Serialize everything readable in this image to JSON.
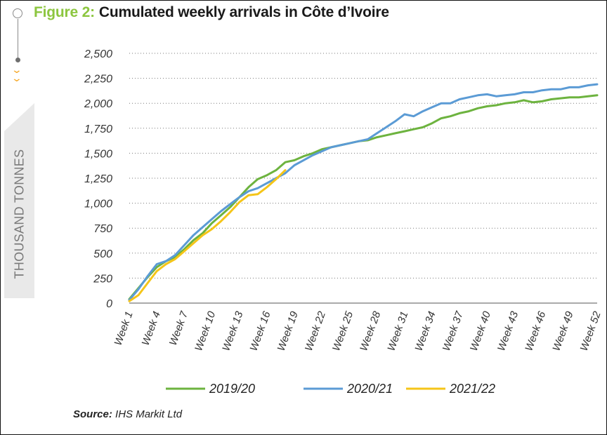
{
  "title": {
    "figure": "Figure 2:",
    "text": "Cumulated weekly arrivals in Côte d’Ivoire"
  },
  "side_label": "THOUSAND TONNES",
  "source": {
    "label": "Source:",
    "text": "IHS Markit Ltd"
  },
  "colors": {
    "accent_green": "#8cc63f",
    "bullet_orange": "#f5a623",
    "tab_bg": "#e9e9e9"
  },
  "icons": [
    "timeline-bullet-icon",
    "chevron-down-icon"
  ],
  "chart_data": {
    "type": "line",
    "title": "Cumulated weekly arrivals in Côte d’Ivoire",
    "xlabel": "",
    "ylabel": "THOUSAND TONNES",
    "ylim": [
      0,
      2500
    ],
    "yticks": [
      0,
      250,
      500,
      750,
      1000,
      1250,
      1500,
      1750,
      2000,
      2250,
      2500
    ],
    "ytick_labels": [
      "0",
      "250",
      "500",
      "750",
      "1,000",
      "1,250",
      "1,500",
      "1,750",
      "2,000",
      "2,250",
      "2,500"
    ],
    "x_tick_labels": [
      "Week 1",
      "Week 4",
      "Week 7",
      "Week 10",
      "Week 13",
      "Week 16",
      "Week 19",
      "Week 22",
      "Week 25",
      "Week 28",
      "Week 31",
      "Week 34",
      "Week 37",
      "Week 40",
      "Week 43",
      "Week 46",
      "Week 49",
      "Week 52"
    ],
    "grid": "horizontal",
    "legend": "bottom",
    "series": [
      {
        "name": "2019/20",
        "color": "#6db33f",
        "x": [
          1,
          2,
          3,
          4,
          5,
          6,
          7,
          8,
          9,
          10,
          11,
          12,
          13,
          14,
          15,
          16,
          17,
          18,
          19,
          20,
          21,
          22,
          23,
          24,
          25,
          26,
          27,
          28,
          29,
          30,
          31,
          32,
          33,
          34,
          35,
          36,
          37,
          38,
          39,
          40,
          41,
          42,
          43,
          44,
          45,
          46,
          47,
          48,
          49,
          50,
          51,
          52
        ],
        "values": [
          40,
          150,
          260,
          360,
          420,
          460,
          540,
          630,
          700,
          800,
          880,
          960,
          1060,
          1160,
          1240,
          1280,
          1330,
          1410,
          1430,
          1470,
          1500,
          1540,
          1560,
          1580,
          1600,
          1620,
          1630,
          1660,
          1680,
          1700,
          1720,
          1740,
          1760,
          1800,
          1850,
          1870,
          1900,
          1920,
          1950,
          1970,
          1980,
          2000,
          2010,
          2030,
          2010,
          2020,
          2040,
          2050,
          2060,
          2060,
          2070,
          2080
        ]
      },
      {
        "name": "2020/21",
        "color": "#5b9bd5",
        "x": [
          1,
          2,
          3,
          4,
          5,
          6,
          7,
          8,
          9,
          10,
          11,
          12,
          13,
          14,
          15,
          16,
          17,
          18,
          19,
          20,
          21,
          22,
          23,
          24,
          25,
          26,
          27,
          28,
          29,
          30,
          31,
          32,
          33,
          34,
          35,
          36,
          37,
          38,
          39,
          40,
          41,
          42,
          43,
          44,
          45,
          46,
          47,
          48,
          49,
          50,
          51,
          52
        ],
        "values": [
          30,
          140,
          270,
          390,
          420,
          480,
          580,
          680,
          760,
          840,
          920,
          990,
          1060,
          1120,
          1150,
          1200,
          1250,
          1300,
          1380,
          1430,
          1480,
          1520,
          1560,
          1580,
          1600,
          1620,
          1640,
          1700,
          1760,
          1820,
          1890,
          1870,
          1920,
          1960,
          2000,
          2000,
          2040,
          2060,
          2080,
          2090,
          2070,
          2080,
          2090,
          2110,
          2110,
          2130,
          2140,
          2140,
          2160,
          2160,
          2180,
          2190
        ]
      },
      {
        "name": "2021/22",
        "color": "#f5c518",
        "x": [
          1,
          2,
          3,
          4,
          5,
          6,
          7,
          8,
          9,
          10,
          11,
          12,
          13,
          14,
          15,
          16,
          17,
          18
        ],
        "values": [
          20,
          80,
          200,
          320,
          390,
          440,
          520,
          600,
          680,
          740,
          820,
          910,
          1010,
          1080,
          1090,
          1160,
          1240,
          1330
        ]
      }
    ]
  }
}
